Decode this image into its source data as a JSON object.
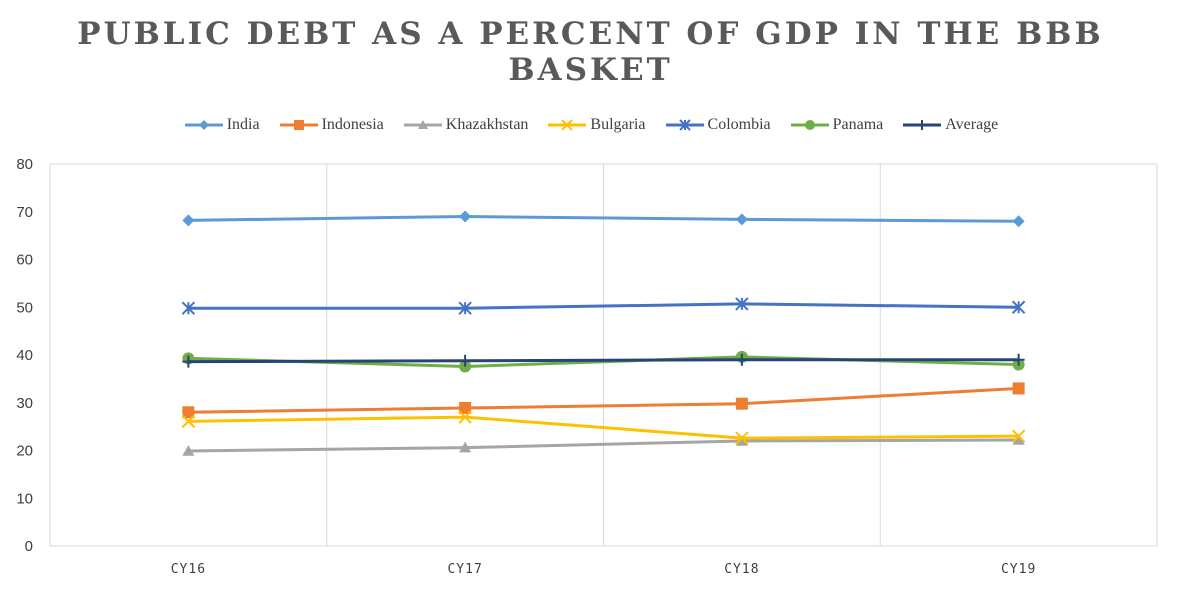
{
  "chart_data": {
    "type": "line",
    "title": "PUBLIC DEBT AS A PERCENT OF GDP IN THE BBB BASKET",
    "categories": [
      "CY16",
      "CY17",
      "CY18",
      "CY19"
    ],
    "ylim": [
      0,
      80
    ],
    "yticks": [
      0,
      10,
      20,
      30,
      40,
      50,
      60,
      70,
      80
    ],
    "grid": "vertical",
    "legend_position": "top",
    "series": [
      {
        "name": "India",
        "color": "#5B9BD5",
        "marker": "diamond",
        "values": [
          68.2,
          69.0,
          68.4,
          68.0
        ]
      },
      {
        "name": "Indonesia",
        "color": "#ED7D31",
        "marker": "square",
        "values": [
          28.0,
          28.9,
          29.8,
          33.0
        ]
      },
      {
        "name": "Khazakhstan",
        "color": "#A5A5A5",
        "marker": "triangle",
        "values": [
          19.9,
          20.6,
          22.0,
          22.2
        ]
      },
      {
        "name": "Bulgaria",
        "color": "#FFC000",
        "marker": "x",
        "values": [
          26.1,
          27.0,
          22.6,
          23.0
        ]
      },
      {
        "name": "Colombia",
        "color": "#4472C4",
        "marker": "star",
        "values": [
          49.8,
          49.8,
          50.7,
          50.0
        ]
      },
      {
        "name": "Panama",
        "color": "#70AD47",
        "marker": "circle",
        "values": [
          39.3,
          37.6,
          39.6,
          38.0
        ]
      },
      {
        "name": "Average",
        "color": "#264478",
        "marker": "plus",
        "values": [
          38.6,
          38.8,
          39.0,
          39.0
        ]
      }
    ]
  }
}
